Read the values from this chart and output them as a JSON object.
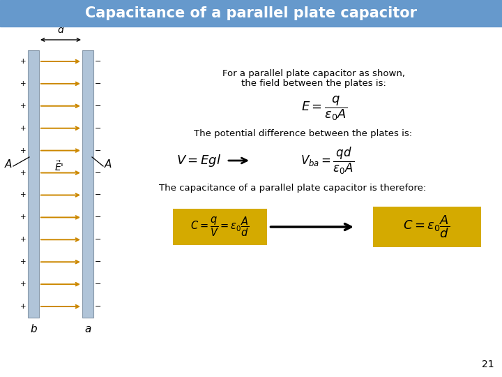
{
  "title": "Capacitance of a parallel plate capacitor",
  "title_bg": "#6699cc",
  "title_color": "#ffffff",
  "bg_color": "#f0f0f0",
  "text1_line1": "For a parallel plate capacitor as shown,",
  "text1_line2": "the field between the plates is:",
  "eq1": "$E = \\dfrac{q}{\\varepsilon_0 A}$",
  "text2": "The potential difference between the plates is:",
  "eq2_left": "$V = Egl$",
  "eq2_right": "$V_{ba} = \\dfrac{qd}{\\varepsilon_0 A}$",
  "text3": "The capacitance of a parallel plate capacitor is therefore:",
  "box1_eq": "$C = \\dfrac{q}{V} = \\varepsilon_0 \\dfrac{A}{d}$",
  "box2_eq": "$C = \\varepsilon_0 \\dfrac{A}{d}$",
  "box_color": "#d4aa00",
  "page_num": "21",
  "plate_color_left": "#b0c4d8",
  "plate_color_right": "#b0c4d8",
  "arrow_color": "#cc8800",
  "n_arrows": 12
}
